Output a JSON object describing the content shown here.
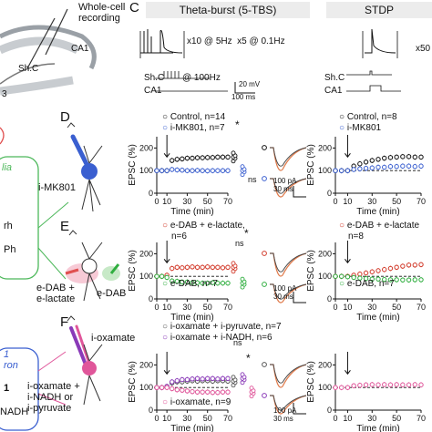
{
  "left_panel": {
    "whole_cell_recording": "Whole-cell\nrecording",
    "ca1": "CA1",
    "shc": "Sh.C",
    "ca3": "3",
    "glia": "lia",
    "rh": "rh",
    "ph": "Ph",
    "i_mk801": "i-MK801",
    "e_dab_e_lactate": "e-DAB +\ne-lactate",
    "e_dab": "e-DAB",
    "i_oxamate": "i-oxamate",
    "i_oxamate_combo": "i-oxamate +\ni-NADH or\ni-pyruvate",
    "cut_1": "1",
    "cut_ron": "ron",
    "cut_one": "1",
    "cut_nadh": "NADH"
  },
  "panel_c": {
    "letter": "C",
    "tbs_title": "Theta-burst (5-TBS)",
    "stdp_title": "STDP",
    "tbs_protocol": "x10 @ 5Hz  x5 @ 0.1Hz",
    "tbs_freq": "@ 100Hz",
    "shc_label": "Sh.C",
    "ca1_label": "CA1",
    "scale_mv": "20 mV",
    "scale_ms": "100 ms",
    "stdp_protocol": "x50"
  },
  "panel_d": {
    "letter": "D",
    "legend": [
      "Control, n=14",
      "i-MK801, n=7"
    ],
    "stdp_legend": [
      "Control, n=8",
      "i-MK801"
    ],
    "ylabel": "EPSC (%)",
    "xlabel": "Time (min)",
    "sig": [
      "*",
      "ns"
    ],
    "scale": "100 pA\n30 ms"
  },
  "panel_e": {
    "letter": "E",
    "legend": [
      "e-DAB + e-lactate,",
      "n=6",
      "e-DAB, n=7"
    ],
    "stdp_legend": [
      "e-DAB + e-lactate",
      "n=8",
      "e-DAB, n=7"
    ],
    "ylabel": "EPSC (%)",
    "xlabel": "Time (min)",
    "sig": [
      "*",
      "ns"
    ],
    "scale": "100 pA\n30 ms"
  },
  "panel_f": {
    "letter": "F",
    "legend": [
      "i-oxamate + i-pyruvate, n=7",
      "i-oxamate + i-NADH, n=6",
      "i-oxamate, n=9"
    ],
    "ylabel": "EPSC (%)",
    "xlabel": "Time (min)",
    "sig": [
      "ns",
      "*"
    ],
    "scale": "100 pA\n30 ms"
  },
  "axes": {
    "yticks": [
      "200",
      "100",
      "0"
    ],
    "xticks": [
      "0",
      "10",
      "30",
      "50",
      "70"
    ],
    "xticks_right": [
      "0",
      "10",
      "30",
      "50",
      "70"
    ]
  },
  "colors": {
    "control": "#111111",
    "mk801": "#3a5fd0",
    "lactate": "#d23a2a",
    "dab": "#2fae3f",
    "pyruvate": "#555555",
    "nadh": "#8a3ab8",
    "oxamate": "#e0569a",
    "trace_orange": "#e07a4a"
  },
  "chart_data": [
    {
      "type": "scatter",
      "panel": "D-TBS",
      "xlabel": "Time (min)",
      "ylabel": "EPSC (%)",
      "xlim": [
        0,
        70
      ],
      "ylim": [
        0,
        250
      ],
      "series": [
        {
          "name": "Control, n=14",
          "x": [
            0,
            5,
            10,
            15,
            20,
            25,
            30,
            35,
            40,
            45,
            50,
            55,
            60,
            65,
            70
          ],
          "y": [
            100,
            100,
            100,
            145,
            150,
            152,
            155,
            155,
            157,
            157,
            158,
            158,
            160,
            160,
            160
          ]
        },
        {
          "name": "i-MK801, n=7",
          "x": [
            0,
            5,
            10,
            15,
            20,
            25,
            30,
            35,
            40,
            45,
            50,
            55,
            60,
            65,
            70
          ],
          "y": [
            100,
            100,
            100,
            105,
            103,
            102,
            100,
            100,
            101,
            100,
            99,
            100,
            100,
            100,
            100
          ]
        }
      ]
    },
    {
      "type": "scatter",
      "panel": "E-TBS",
      "xlabel": "Time (min)",
      "ylabel": "EPSC (%)",
      "xlim": [
        0,
        70
      ],
      "ylim": [
        0,
        250
      ],
      "series": [
        {
          "name": "e-DAB + e-lactate, n=6",
          "x": [
            0,
            5,
            10,
            15,
            20,
            25,
            30,
            35,
            40,
            45,
            50,
            55,
            60,
            65,
            70
          ],
          "y": [
            100,
            100,
            105,
            135,
            140,
            138,
            140,
            142,
            140,
            140,
            142,
            140,
            140,
            138,
            140
          ]
        },
        {
          "name": "e-DAB, n=7",
          "x": [
            0,
            5,
            10,
            15,
            20,
            25,
            30,
            35,
            40,
            45,
            50,
            55,
            60,
            65,
            70
          ],
          "y": [
            100,
            100,
            95,
            80,
            78,
            75,
            75,
            72,
            72,
            70,
            70,
            72,
            70,
            70,
            70
          ]
        }
      ]
    },
    {
      "type": "scatter",
      "panel": "F-TBS",
      "xlabel": "Time (min)",
      "ylabel": "EPSC (%)",
      "xlim": [
        0,
        70
      ],
      "ylim": [
        0,
        250
      ],
      "series": [
        {
          "name": "i-oxamate + i-pyruvate, n=7",
          "x": [
            0,
            5,
            10,
            15,
            20,
            25,
            30,
            35,
            40,
            45,
            50,
            55,
            60,
            65,
            70
          ],
          "y": [
            100,
            100,
            105,
            120,
            125,
            125,
            128,
            130,
            128,
            130,
            130,
            128,
            130,
            130,
            128
          ]
        },
        {
          "name": "i-oxamate + i-NADH, n=6",
          "x": [
            0,
            5,
            10,
            15,
            20,
            25,
            30,
            35,
            40,
            45,
            50,
            55,
            60,
            65,
            70
          ],
          "y": [
            100,
            100,
            105,
            125,
            130,
            135,
            135,
            138,
            140,
            138,
            140,
            140,
            138,
            140,
            140
          ]
        },
        {
          "name": "i-oxamate, n=9",
          "x": [
            0,
            5,
            10,
            15,
            20,
            25,
            30,
            35,
            40,
            45,
            50,
            55,
            60,
            65,
            70
          ],
          "y": [
            100,
            100,
            100,
            95,
            90,
            88,
            85,
            82,
            80,
            80,
            80,
            78,
            78,
            80,
            80
          ]
        }
      ]
    },
    {
      "type": "scatter",
      "panel": "D-STDP",
      "xlabel": "Time (min)",
      "ylabel": "EPSC (%)",
      "xlim": [
        0,
        70
      ],
      "ylim": [
        0,
        250
      ],
      "series": [
        {
          "name": "Control, n=8",
          "x": [
            0,
            5,
            10,
            15,
            20,
            25,
            30,
            35,
            40,
            45,
            50,
            55,
            60,
            65,
            70
          ],
          "y": [
            100,
            100,
            100,
            120,
            130,
            138,
            145,
            150,
            155,
            158,
            160,
            162,
            162,
            160,
            160
          ]
        },
        {
          "name": "i-MK801",
          "x": [
            0,
            5,
            10,
            15,
            20,
            25,
            30,
            35,
            40,
            45,
            50,
            55,
            60,
            65,
            70
          ],
          "y": [
            100,
            100,
            100,
            105,
            108,
            110,
            112,
            115,
            115,
            118,
            118,
            120,
            120,
            118,
            120
          ]
        }
      ]
    },
    {
      "type": "scatter",
      "panel": "E-STDP",
      "xlabel": "Time (min)",
      "ylabel": "EPSC (%)",
      "xlim": [
        0,
        70
      ],
      "ylim": [
        0,
        250
      ],
      "series": [
        {
          "name": "e-DAB + e-lactate, n=8",
          "x": [
            0,
            5,
            10,
            15,
            20,
            25,
            30,
            35,
            40,
            45,
            50,
            55,
            60,
            65,
            70
          ],
          "y": [
            100,
            100,
            100,
            105,
            110,
            115,
            120,
            125,
            130,
            135,
            140,
            145,
            150,
            150,
            152
          ]
        },
        {
          "name": "e-DAB, n=7",
          "x": [
            0,
            5,
            10,
            15,
            20,
            25,
            30,
            35,
            40,
            45,
            50,
            55,
            60,
            65,
            70
          ],
          "y": [
            100,
            100,
            98,
            95,
            92,
            90,
            88,
            88,
            86,
            85,
            85,
            84,
            84,
            85,
            85
          ]
        }
      ]
    },
    {
      "type": "scatter",
      "panel": "F-STDP",
      "xlabel": "Time (min)",
      "ylabel": "EPSC (%)",
      "xlim": [
        0,
        70
      ],
      "ylim": [
        0,
        250
      ],
      "series": [
        {
          "name": "i-oxamate",
          "x": [
            0,
            5,
            10,
            15,
            20,
            25,
            30,
            35,
            40,
            45,
            50,
            55,
            60,
            65,
            70
          ],
          "y": [
            100,
            100,
            100,
            108,
            110,
            112,
            113,
            112,
            113,
            112,
            113,
            112,
            112,
            113,
            112
          ]
        }
      ]
    }
  ]
}
